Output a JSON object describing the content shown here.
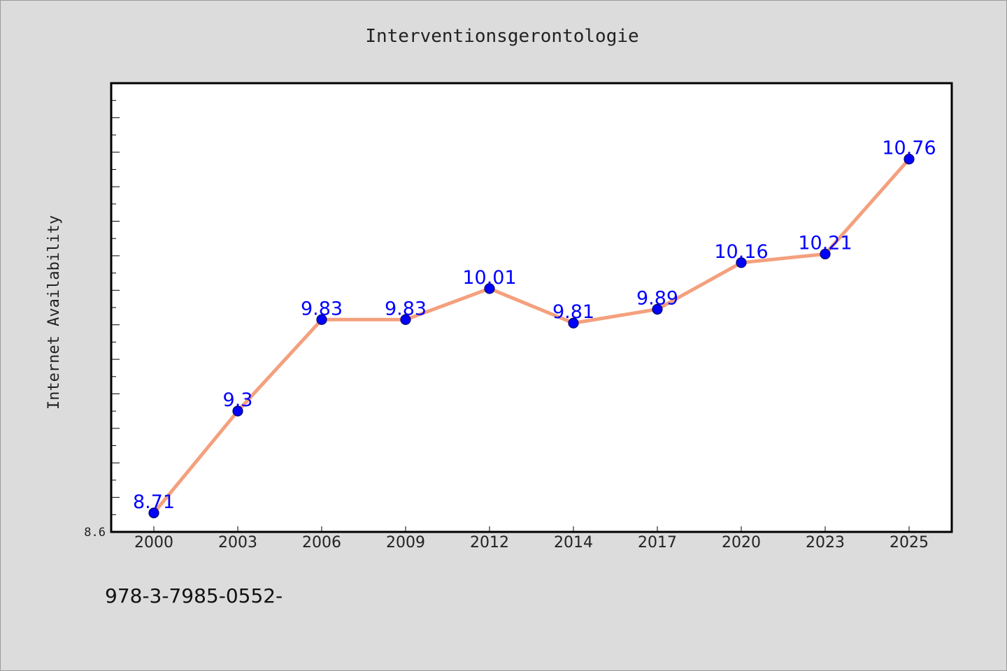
{
  "chart_data": {
    "type": "line",
    "title": "Interventionsgerontologie",
    "ylabel": "Internet Availability",
    "xlabel": "",
    "categories": [
      "2000",
      "2003",
      "2006",
      "2009",
      "2012",
      "2014",
      "2017",
      "2020",
      "2023",
      "2025"
    ],
    "series": [
      {
        "values": [
          8.71,
          9.3,
          9.83,
          9.83,
          10.01,
          9.81,
          9.89,
          10.16,
          10.21,
          10.76
        ],
        "data_labels": [
          "8.71",
          "9.3",
          "9.83",
          "9.83",
          "10.01",
          "9.81",
          "9.89",
          "10.16",
          "10.21",
          "10.76"
        ]
      }
    ],
    "y_tick_labels": [
      "8.6"
    ],
    "ylim": [
      8.6,
      11.2
    ],
    "grid": false,
    "legend": "none",
    "colors": {
      "line": "#f4a07e",
      "marker": "#0000ff",
      "marker_edge": "#000066",
      "data_label": "#0000ff",
      "background": "#dcdcdc",
      "plot_background": "#ffffff"
    }
  },
  "footer": {
    "text": "978-3-7985-0552-"
  }
}
